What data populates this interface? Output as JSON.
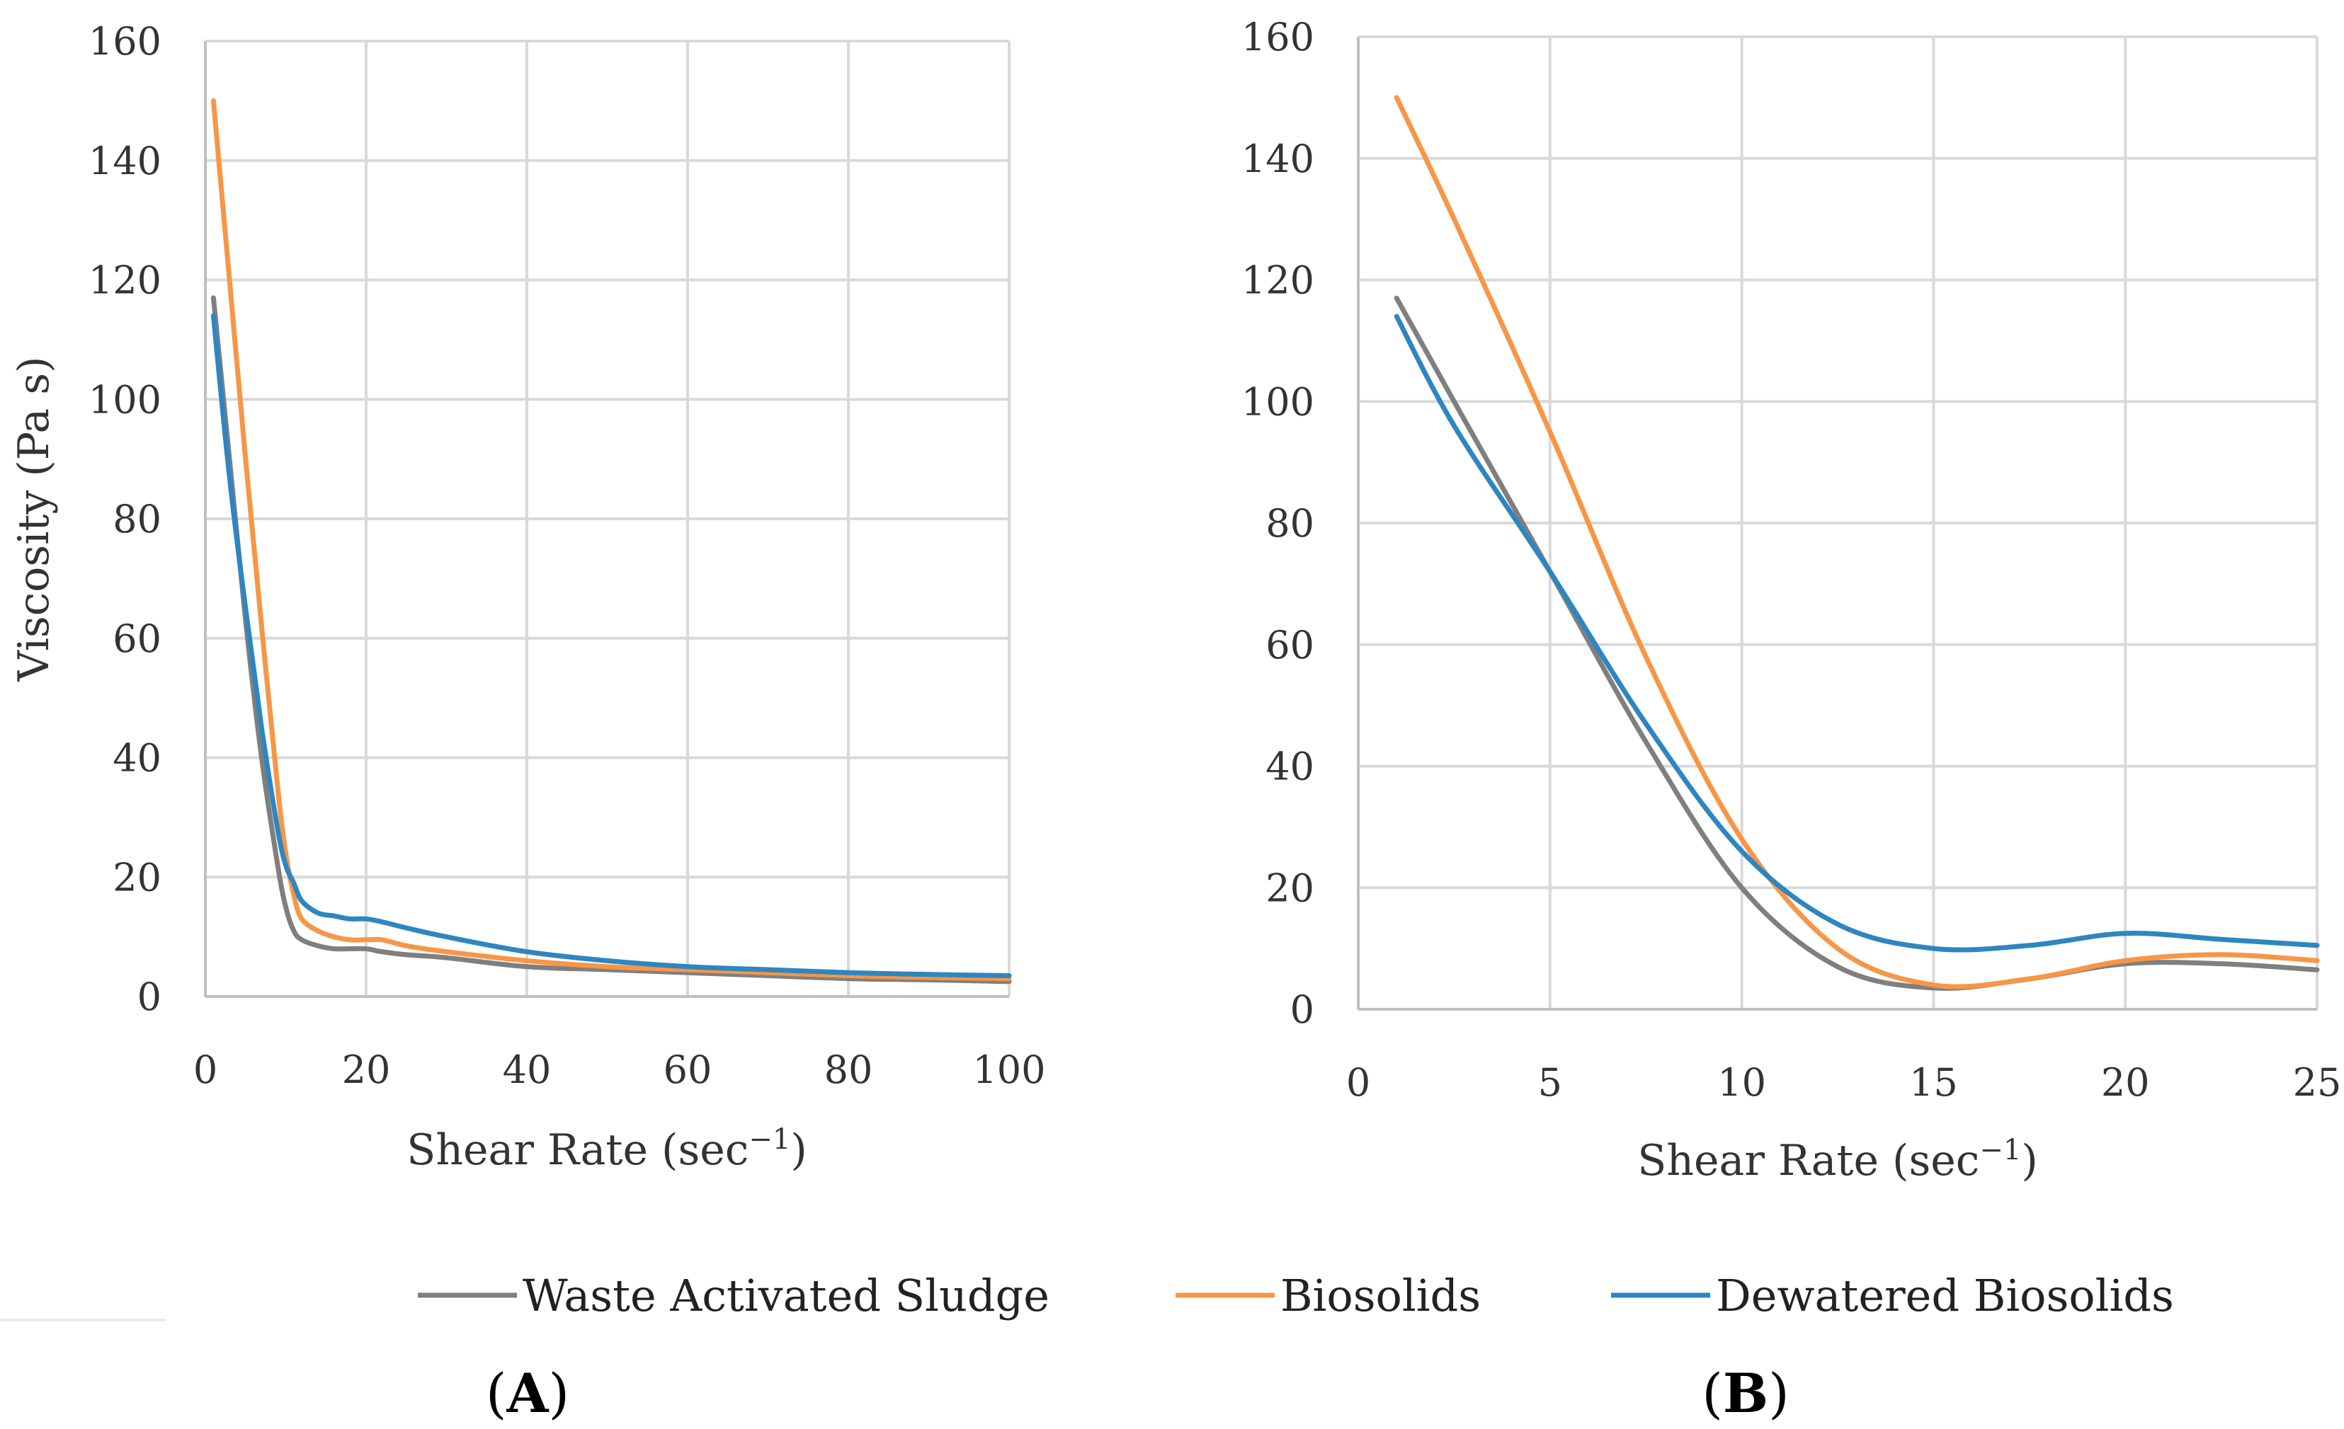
{
  "colors": {
    "waste_activated_sludge": "#7f7f7f",
    "biosolids": "#f79646",
    "dewatered_biosolids": "#2e86c1",
    "grid": "#d9d9d9"
  },
  "legend": {
    "items": [
      {
        "key": "waste_activated_sludge",
        "label": "Waste Activated Sludge"
      },
      {
        "key": "biosolids",
        "label": "Biosolids"
      },
      {
        "key": "dewatered_biosolids",
        "label": "Dewatered Biosolids"
      }
    ]
  },
  "panels": {
    "a_label_open": "(",
    "a_label_letter": "A",
    "a_label_close": ")",
    "b_label_open": "(",
    "b_label_letter": "B",
    "b_label_close": ")"
  },
  "chart_data": [
    {
      "type": "line",
      "panel": "A",
      "title": "",
      "xlabel": "Shear Rate (sec",
      "xlabel_sup": "−1",
      "xlabel_close": ")",
      "ylabel": "Viscosity (Pa s)",
      "xlim": [
        0,
        100
      ],
      "ylim": [
        0,
        160
      ],
      "xticks": [
        0,
        20,
        40,
        60,
        80,
        100
      ],
      "yticks": [
        0,
        20,
        40,
        60,
        80,
        100,
        120,
        140,
        160
      ],
      "xtick_labels": [
        "0",
        "20",
        "40",
        "60",
        "80",
        "100"
      ],
      "ytick_labels": [
        "0",
        "20",
        "40",
        "60",
        "80",
        "100",
        "120",
        "140",
        "160"
      ],
      "grid": true,
      "series": [
        {
          "name": "Waste Activated Sludge",
          "color_key": "waste_activated_sludge",
          "x": [
            1,
            3,
            5,
            7,
            9,
            10,
            11,
            12,
            14,
            16,
            18,
            20,
            22,
            25,
            30,
            40,
            50,
            60,
            70,
            80,
            90,
            100
          ],
          "y": [
            117,
            90,
            63,
            40,
            22,
            15,
            11,
            9.5,
            8.5,
            8,
            8,
            8,
            7.5,
            7,
            6.5,
            5,
            4.5,
            4,
            3.5,
            3,
            2.8,
            2.5
          ]
        },
        {
          "name": "Biosolids",
          "color_key": "biosolids",
          "x": [
            1,
            3,
            5,
            7,
            9,
            10,
            11,
            12,
            14,
            16,
            18,
            20,
            22,
            25,
            30,
            40,
            50,
            60,
            70,
            80,
            90,
            100
          ],
          "y": [
            150,
            120,
            90,
            62,
            35,
            24,
            17,
            13,
            11,
            10,
            9.5,
            9.5,
            9.5,
            8.5,
            7.5,
            6,
            5,
            4.5,
            4,
            3.5,
            3.2,
            3
          ]
        },
        {
          "name": "Dewatered Biosolids",
          "color_key": "dewatered_biosolids",
          "x": [
            1,
            3,
            5,
            7,
            9,
            10,
            11,
            12,
            14,
            16,
            18,
            20,
            22,
            25,
            30,
            40,
            50,
            60,
            70,
            80,
            90,
            100
          ],
          "y": [
            114,
            87,
            65,
            45,
            28,
            22,
            19,
            16,
            14,
            13.5,
            13,
            13,
            12.5,
            11.5,
            10,
            7.5,
            6,
            5,
            4.5,
            4,
            3.7,
            3.5
          ]
        }
      ]
    },
    {
      "type": "line",
      "panel": "B",
      "title": "",
      "xlabel": "Shear Rate (sec",
      "xlabel_sup": "−1",
      "xlabel_close": ")",
      "ylabel": "",
      "xlim": [
        0,
        25
      ],
      "ylim": [
        0,
        160
      ],
      "xticks": [
        0,
        5,
        10,
        15,
        20,
        25
      ],
      "yticks": [
        0,
        20,
        40,
        60,
        80,
        100,
        120,
        140,
        160
      ],
      "xtick_labels": [
        "0",
        "5",
        "10",
        "15",
        "20",
        "25"
      ],
      "ytick_labels": [
        "0",
        "20",
        "40",
        "60",
        "80",
        "100",
        "120",
        "140",
        "160"
      ],
      "grid": true,
      "series": [
        {
          "name": "Waste Activated Sludge",
          "color_key": "waste_activated_sludge",
          "x": [
            1,
            2.5,
            5,
            7.5,
            10,
            12.5,
            15,
            17.5,
            20,
            22.5,
            25
          ],
          "y": [
            117,
            100,
            72,
            44,
            20,
            7,
            3.5,
            5,
            7.5,
            7.5,
            6.5
          ]
        },
        {
          "name": "Biosolids",
          "color_key": "biosolids",
          "x": [
            1,
            2.5,
            5,
            7.5,
            10,
            12.5,
            15,
            17.5,
            20,
            22.5,
            25
          ],
          "y": [
            150,
            130,
            95,
            58,
            28,
            10,
            4,
            5,
            8,
            9,
            8
          ]
        },
        {
          "name": "Dewatered Biosolids",
          "color_key": "dewatered_biosolids",
          "x": [
            1,
            2.5,
            5,
            7.5,
            10,
            12.5,
            15,
            17.5,
            20,
            22.5,
            25
          ],
          "y": [
            114,
            96,
            72,
            47,
            26,
            14,
            10,
            10.5,
            12.5,
            11.5,
            10.5
          ]
        }
      ]
    }
  ]
}
